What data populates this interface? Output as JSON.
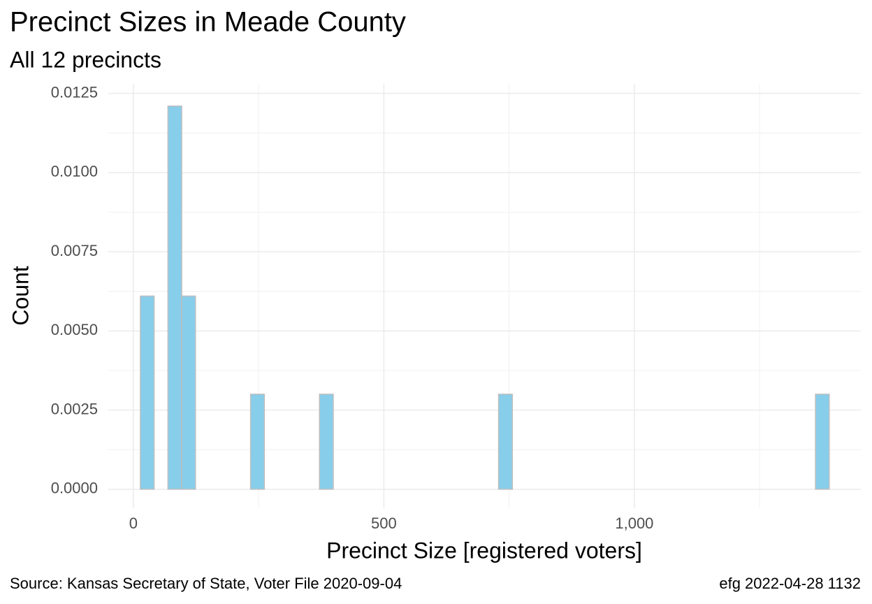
{
  "chart_data": {
    "type": "histogram",
    "title": "Precinct Sizes in Meade County",
    "subtitle": "All 12 precincts",
    "x_label": "Precinct Size [registered voters]",
    "y_label": "Count",
    "caption_left": "Source:  Kansas Secretary of State, Voter File  2020-09-04",
    "caption_right": "efg 2022-04-28 1132",
    "bins": [
      14,
      41.5,
      69,
      96.5,
      124,
      151.5,
      179,
      206.5,
      234,
      261.5,
      289,
      316.5,
      344,
      371.5,
      399,
      426.5,
      454,
      481.5,
      509,
      536.5,
      564,
      591.5,
      619,
      646.5,
      674,
      701.5,
      729,
      756.5,
      784,
      811.5,
      839,
      866.5,
      894,
      921.5,
      949,
      976.5,
      1004,
      1031.5,
      1059,
      1086.5,
      1114,
      1141.5,
      1169,
      1196.5,
      1224,
      1251.5,
      1279,
      1306.5,
      1334,
      1361.5,
      1389
    ],
    "values": [
      0.0061,
      0,
      0.0121,
      0.0061,
      0,
      0,
      0,
      0,
      0.003,
      0,
      0,
      0,
      0,
      0.003,
      0,
      0,
      0,
      0,
      0,
      0,
      0,
      0,
      0,
      0,
      0,
      0,
      0.003,
      0,
      0,
      0,
      0,
      0,
      0,
      0,
      0,
      0,
      0,
      0,
      0,
      0,
      0,
      0,
      0,
      0,
      0,
      0,
      0,
      0,
      0,
      0.003
    ],
    "color": "#87ceeb",
    "edge_color": "#bebebe",
    "xlim": [
      -50,
      1452
    ],
    "ylim": [
      -0.0006,
      0.0128
    ],
    "xticks": [
      0,
      500,
      {
        "value": 1000,
        "label": "1,000"
      }
    ],
    "yticks": [
      {
        "value": 0,
        "label": "0.0000"
      },
      {
        "value": 0.0025,
        "label": "0.0025"
      },
      {
        "value": 0.005,
        "label": "0.0050"
      },
      {
        "value": 0.0075,
        "label": "0.0075"
      },
      {
        "value": 0.01,
        "label": "0.0100"
      },
      {
        "value": 0.0125,
        "label": "0.0125"
      }
    ],
    "grid": true
  }
}
